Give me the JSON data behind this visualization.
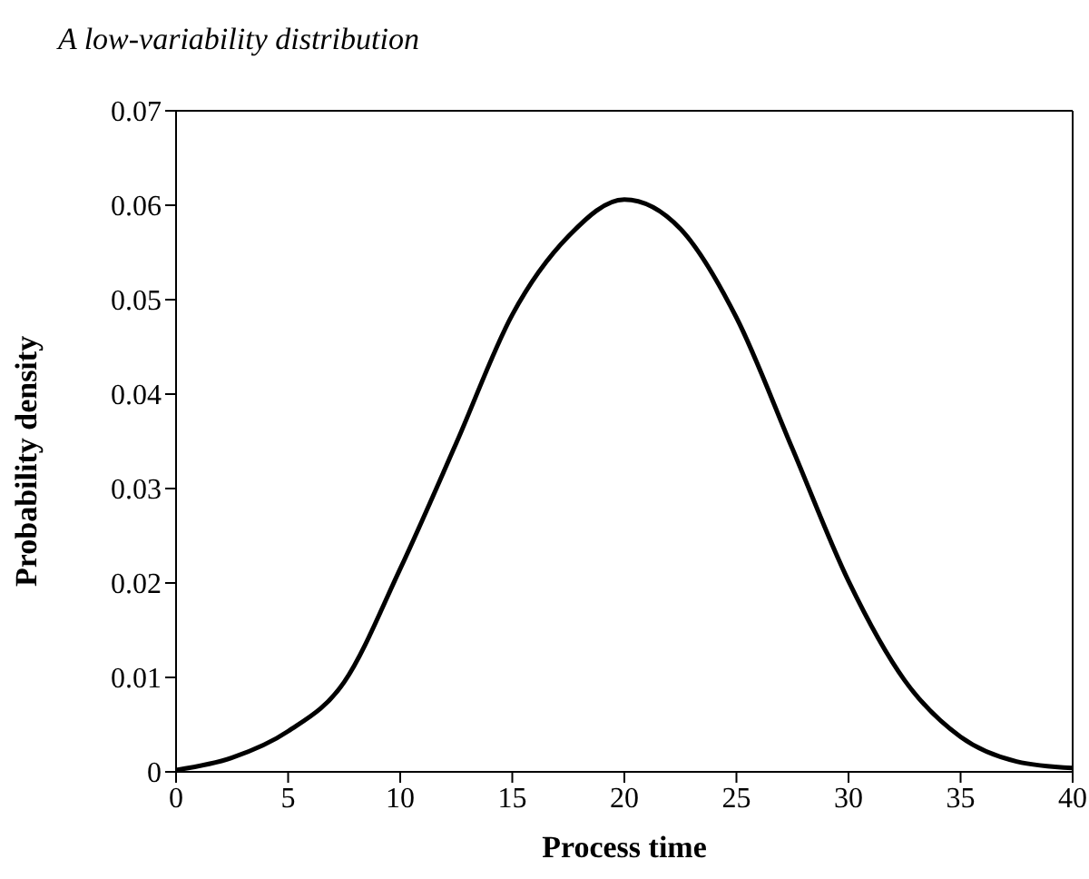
{
  "chart_data": {
    "type": "line",
    "title": "A low-variability distribution",
    "xlabel": "Process time",
    "ylabel": "Probability density",
    "x": [
      0,
      2.5,
      5,
      7.5,
      10,
      12.5,
      15,
      17.5,
      20,
      22.5,
      25,
      27.5,
      30,
      32.5,
      35,
      37.5,
      40
    ],
    "series": [
      {
        "color": "#000000",
        "values": [
          0.0002,
          0.0015,
          0.0043,
          0.0095,
          0.0215,
          0.0348,
          0.0484,
          0.0567,
          0.0606,
          0.0575,
          0.0481,
          0.0342,
          0.0202,
          0.0097,
          0.0037,
          0.0011,
          0.0004
        ]
      }
    ],
    "xlim": [
      0,
      40
    ],
    "xticks": [
      0,
      5,
      10,
      15,
      20,
      25,
      30,
      35,
      40
    ],
    "ylim": [
      0,
      0.07
    ],
    "yticks": [
      0,
      0.01,
      0.02,
      0.03,
      0.04,
      0.05,
      0.06,
      0.07
    ],
    "grid": false,
    "marker": "none",
    "line_style": "solid"
  }
}
